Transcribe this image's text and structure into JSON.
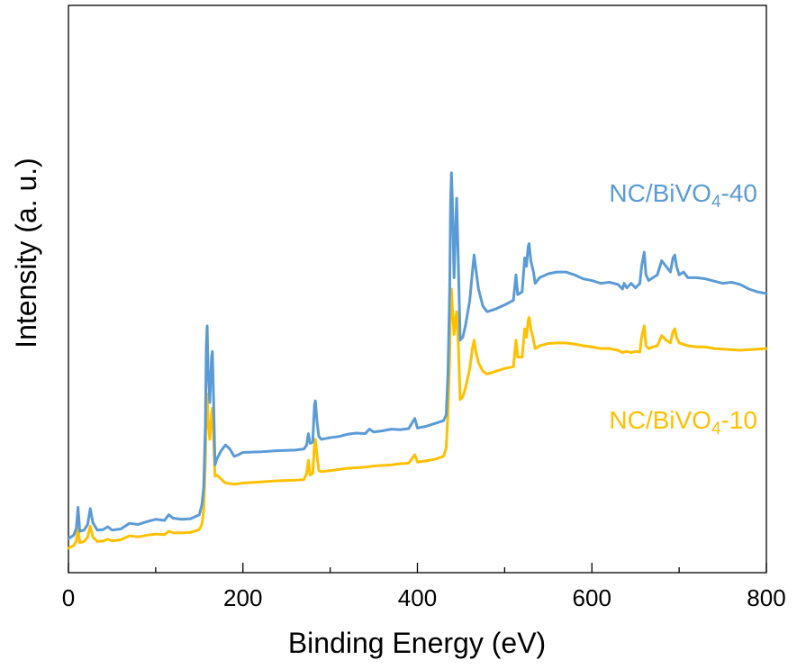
{
  "chart_data": {
    "type": "line",
    "title": "",
    "xlabel": "Binding Energy (eV)",
    "ylabel": "Intensity (a. u.)",
    "xlim": [
      0,
      800
    ],
    "ylim": [
      0,
      100
    ],
    "x_ticks": [
      0,
      200,
      400,
      600,
      800
    ],
    "x_tick_labels": [
      "0",
      "200",
      "400",
      "600",
      "800"
    ],
    "x_minor_ticks": [
      100,
      300,
      500,
      700
    ],
    "grid": false,
    "legend": "inline labels at right",
    "series": [
      {
        "name": "NC/BiVO4-40",
        "label_main": "NC/BiVO",
        "label_sub": "4",
        "label_suffix": "-40",
        "color": "#5B9BD5",
        "points": [
          [
            0,
            6.0
          ],
          [
            6,
            6.6
          ],
          [
            9,
            7.8
          ],
          [
            11,
            11.5
          ],
          [
            13,
            7.3
          ],
          [
            18,
            7.5
          ],
          [
            22,
            8.5
          ],
          [
            25,
            11.3
          ],
          [
            28,
            8.8
          ],
          [
            33,
            7.5
          ],
          [
            40,
            7.6
          ],
          [
            45,
            8.1
          ],
          [
            50,
            7.5
          ],
          [
            60,
            7.7
          ],
          [
            70,
            8.7
          ],
          [
            80,
            8.5
          ],
          [
            90,
            9.0
          ],
          [
            100,
            9.4
          ],
          [
            110,
            9.2
          ],
          [
            115,
            10.2
          ],
          [
            120,
            9.6
          ],
          [
            130,
            9.4
          ],
          [
            140,
            9.5
          ],
          [
            150,
            10.2
          ],
          [
            153,
            12.0
          ],
          [
            155,
            15.0
          ],
          [
            157,
            26.0
          ],
          [
            158,
            40.0
          ],
          [
            159,
            43.5
          ],
          [
            160,
            36.0
          ],
          [
            162,
            30.0
          ],
          [
            164,
            38.0
          ],
          [
            165,
            39.0
          ],
          [
            166,
            33.0
          ],
          [
            168,
            19.0
          ],
          [
            170,
            20.0
          ],
          [
            175,
            21.5
          ],
          [
            180,
            22.5
          ],
          [
            185,
            21.8
          ],
          [
            190,
            20.5
          ],
          [
            195,
            20.8
          ],
          [
            200,
            21.2
          ],
          [
            220,
            21.3
          ],
          [
            240,
            21.5
          ],
          [
            260,
            21.6
          ],
          [
            270,
            21.8
          ],
          [
            273,
            22.5
          ],
          [
            275,
            24.5
          ],
          [
            277,
            22.8
          ],
          [
            280,
            23.0
          ],
          [
            282,
            29.5
          ],
          [
            283,
            30.3
          ],
          [
            285,
            26.5
          ],
          [
            287,
            24.0
          ],
          [
            290,
            23.5
          ],
          [
            300,
            23.8
          ],
          [
            310,
            24.0
          ],
          [
            320,
            24.4
          ],
          [
            330,
            24.6
          ],
          [
            340,
            24.5
          ],
          [
            345,
            25.3
          ],
          [
            350,
            24.8
          ],
          [
            360,
            25.0
          ],
          [
            370,
            25.3
          ],
          [
            380,
            25.2
          ],
          [
            390,
            25.4
          ],
          [
            397,
            27.2
          ],
          [
            400,
            25.5
          ],
          [
            410,
            25.8
          ],
          [
            420,
            26.3
          ],
          [
            430,
            26.8
          ],
          [
            433,
            27.8
          ],
          [
            435,
            35.0
          ],
          [
            437,
            50.0
          ],
          [
            438,
            65.0
          ],
          [
            439,
            70.5
          ],
          [
            440,
            66.0
          ],
          [
            442,
            52.0
          ],
          [
            444,
            62.0
          ],
          [
            445,
            66.0
          ],
          [
            447,
            54.0
          ],
          [
            449,
            41.0
          ],
          [
            452,
            41.5
          ],
          [
            455,
            43.5
          ],
          [
            460,
            48.0
          ],
          [
            463,
            53.0
          ],
          [
            465,
            56.0
          ],
          [
            467,
            53.5
          ],
          [
            470,
            50.0
          ],
          [
            475,
            47.0
          ],
          [
            480,
            46.0
          ],
          [
            490,
            46.5
          ],
          [
            500,
            47.2
          ],
          [
            510,
            48.0
          ],
          [
            513,
            52.5
          ],
          [
            515,
            49.0
          ],
          [
            520,
            49.5
          ],
          [
            523,
            55.5
          ],
          [
            525,
            54.0
          ],
          [
            527,
            57.5
          ],
          [
            528,
            58.0
          ],
          [
            530,
            55.0
          ],
          [
            533,
            53.0
          ],
          [
            535,
            51.0
          ],
          [
            540,
            52.0
          ],
          [
            550,
            52.7
          ],
          [
            560,
            53.0
          ],
          [
            570,
            53.0
          ],
          [
            580,
            52.5
          ],
          [
            590,
            51.8
          ],
          [
            600,
            51.5
          ],
          [
            610,
            51.0
          ],
          [
            620,
            51.2
          ],
          [
            630,
            50.8
          ],
          [
            635,
            50.0
          ],
          [
            637,
            51.0
          ],
          [
            640,
            50.2
          ],
          [
            645,
            51.0
          ],
          [
            650,
            50.2
          ],
          [
            655,
            51.0
          ],
          [
            657,
            54.0
          ],
          [
            660,
            56.5
          ],
          [
            662,
            52.5
          ],
          [
            665,
            51.5
          ],
          [
            670,
            52.0
          ],
          [
            675,
            52.5
          ],
          [
            680,
            55.0
          ],
          [
            685,
            54.0
          ],
          [
            690,
            53.0
          ],
          [
            693,
            55.5
          ],
          [
            695,
            56.0
          ],
          [
            697,
            54.0
          ],
          [
            700,
            52.5
          ],
          [
            705,
            53.0
          ],
          [
            710,
            52.0
          ],
          [
            720,
            52.0
          ],
          [
            730,
            51.8
          ],
          [
            740,
            51.4
          ],
          [
            750,
            51.0
          ],
          [
            760,
            51.2
          ],
          [
            770,
            50.8
          ],
          [
            780,
            50.0
          ],
          [
            790,
            49.5
          ],
          [
            800,
            49.2
          ]
        ]
      },
      {
        "name": "NC/BiVO4-10",
        "label_main": "NC/BiVO",
        "label_sub": "4",
        "label_suffix": "-10",
        "color": "#FFC000",
        "points": [
          [
            0,
            4.3
          ],
          [
            6,
            4.8
          ],
          [
            9,
            5.5
          ],
          [
            11,
            8.0
          ],
          [
            13,
            5.3
          ],
          [
            18,
            5.5
          ],
          [
            22,
            6.3
          ],
          [
            25,
            8.2
          ],
          [
            28,
            6.3
          ],
          [
            33,
            5.5
          ],
          [
            40,
            5.6
          ],
          [
            45,
            5.9
          ],
          [
            50,
            5.6
          ],
          [
            60,
            5.8
          ],
          [
            70,
            6.5
          ],
          [
            80,
            6.3
          ],
          [
            90,
            6.6
          ],
          [
            100,
            6.8
          ],
          [
            110,
            6.7
          ],
          [
            115,
            7.3
          ],
          [
            120,
            7.0
          ],
          [
            130,
            7.0
          ],
          [
            140,
            7.1
          ],
          [
            150,
            7.6
          ],
          [
            153,
            8.5
          ],
          [
            155,
            11.0
          ],
          [
            157,
            19.5
          ],
          [
            158,
            29.0
          ],
          [
            159,
            31.5
          ],
          [
            160,
            27.0
          ],
          [
            162,
            23.5
          ],
          [
            164,
            28.0
          ],
          [
            165,
            29.0
          ],
          [
            166,
            25.0
          ],
          [
            168,
            17.0
          ],
          [
            170,
            17.2
          ],
          [
            175,
            16.5
          ],
          [
            180,
            15.8
          ],
          [
            190,
            15.6
          ],
          [
            200,
            15.8
          ],
          [
            220,
            16.0
          ],
          [
            240,
            16.2
          ],
          [
            260,
            16.3
          ],
          [
            270,
            16.4
          ],
          [
            273,
            17.5
          ],
          [
            275,
            19.8
          ],
          [
            277,
            17.2
          ],
          [
            280,
            17.5
          ],
          [
            282,
            22.5
          ],
          [
            283,
            23.5
          ],
          [
            285,
            20.5
          ],
          [
            287,
            18.0
          ],
          [
            290,
            17.8
          ],
          [
            300,
            18.0
          ],
          [
            310,
            18.2
          ],
          [
            320,
            18.4
          ],
          [
            330,
            18.5
          ],
          [
            340,
            18.6
          ],
          [
            350,
            18.8
          ],
          [
            360,
            18.9
          ],
          [
            370,
            19.0
          ],
          [
            380,
            19.2
          ],
          [
            390,
            19.3
          ],
          [
            397,
            20.8
          ],
          [
            400,
            19.5
          ],
          [
            410,
            19.7
          ],
          [
            420,
            20.0
          ],
          [
            430,
            20.5
          ],
          [
            433,
            22.0
          ],
          [
            435,
            28.0
          ],
          [
            437,
            38.0
          ],
          [
            438,
            47.0
          ],
          [
            439,
            50.0
          ],
          [
            440,
            47.0
          ],
          [
            442,
            42.0
          ],
          [
            444,
            45.0
          ],
          [
            445,
            46.0
          ],
          [
            447,
            40.0
          ],
          [
            449,
            30.5
          ],
          [
            452,
            31.0
          ],
          [
            455,
            32.5
          ],
          [
            460,
            36.0
          ],
          [
            463,
            39.5
          ],
          [
            465,
            41.0
          ],
          [
            467,
            39.0
          ],
          [
            470,
            37.0
          ],
          [
            475,
            35.5
          ],
          [
            480,
            35.0
          ],
          [
            490,
            35.5
          ],
          [
            500,
            36.0
          ],
          [
            510,
            36.3
          ],
          [
            513,
            41.0
          ],
          [
            515,
            38.0
          ],
          [
            520,
            38.0
          ],
          [
            523,
            43.0
          ],
          [
            525,
            41.5
          ],
          [
            527,
            44.5
          ],
          [
            528,
            45.0
          ],
          [
            530,
            43.0
          ],
          [
            533,
            41.0
          ],
          [
            535,
            39.5
          ],
          [
            540,
            40.0
          ],
          [
            550,
            40.4
          ],
          [
            560,
            40.5
          ],
          [
            570,
            40.5
          ],
          [
            580,
            40.3
          ],
          [
            590,
            40.0
          ],
          [
            600,
            39.8
          ],
          [
            610,
            39.5
          ],
          [
            620,
            39.5
          ],
          [
            630,
            39.2
          ],
          [
            635,
            38.8
          ],
          [
            640,
            39.0
          ],
          [
            645,
            38.8
          ],
          [
            650,
            39.0
          ],
          [
            655,
            38.9
          ],
          [
            657,
            41.5
          ],
          [
            660,
            43.5
          ],
          [
            662,
            40.0
          ],
          [
            665,
            39.5
          ],
          [
            670,
            39.8
          ],
          [
            675,
            40.0
          ],
          [
            680,
            41.8
          ],
          [
            685,
            41.0
          ],
          [
            690,
            40.5
          ],
          [
            693,
            42.5
          ],
          [
            695,
            43.0
          ],
          [
            697,
            41.5
          ],
          [
            700,
            40.5
          ],
          [
            710,
            40.0
          ],
          [
            720,
            39.8
          ],
          [
            730,
            39.8
          ],
          [
            740,
            39.5
          ],
          [
            750,
            39.4
          ],
          [
            760,
            39.3
          ],
          [
            770,
            39.2
          ],
          [
            780,
            39.3
          ],
          [
            790,
            39.4
          ],
          [
            800,
            39.5
          ]
        ]
      }
    ]
  }
}
